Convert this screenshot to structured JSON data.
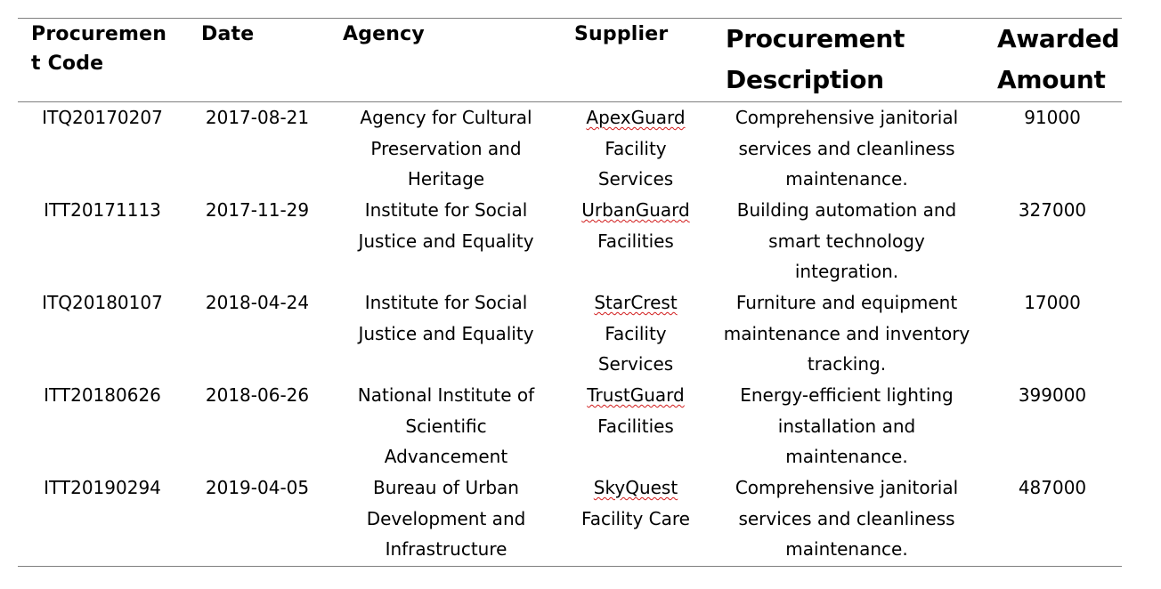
{
  "table": {
    "headers": {
      "code": [
        "Procuremen",
        "t Code"
      ],
      "date": "Date",
      "agency": "Agency",
      "supplier": "Supplier",
      "description": [
        "Procurement",
        "Description"
      ],
      "amount": [
        "Awarded",
        "Amount"
      ]
    },
    "rows": [
      {
        "code": "ITQ20170207",
        "date": "2017-08-21",
        "agency": [
          "Agency for Cultural",
          "Preservation and",
          "Heritage"
        ],
        "supplier_first": "ApexGuard",
        "supplier_rest": [
          "Facility",
          "Services"
        ],
        "description": [
          "Comprehensive janitorial",
          "services and cleanliness",
          "maintenance."
        ],
        "amount": "91000"
      },
      {
        "code": "ITT20171113",
        "date": "2017-11-29",
        "agency": [
          "Institute for Social",
          "Justice and Equality"
        ],
        "supplier_first": "UrbanGuard",
        "supplier_rest": [
          "Facilities"
        ],
        "description": [
          "Building automation and",
          "smart technology",
          "integration."
        ],
        "amount": "327000"
      },
      {
        "code": "ITQ20180107",
        "date": "2018-04-24",
        "agency": [
          "Institute for Social",
          "Justice and Equality"
        ],
        "supplier_first": "StarCrest",
        "supplier_rest": [
          "Facility",
          "Services"
        ],
        "description": [
          "Furniture and equipment",
          "maintenance and inventory",
          "tracking."
        ],
        "amount": "17000"
      },
      {
        "code": "ITT20180626",
        "date": "2018-06-26",
        "agency": [
          "National Institute of",
          "Scientific",
          "Advancement"
        ],
        "supplier_first": "TrustGuard",
        "supplier_rest": [
          "Facilities"
        ],
        "description": [
          "Energy-efficient lighting",
          "installation and",
          "maintenance."
        ],
        "amount": "399000"
      },
      {
        "code": "ITT20190294",
        "date": "2019-04-05",
        "agency": [
          "Bureau of Urban",
          "Development and",
          "Infrastructure"
        ],
        "supplier_first": "SkyQuest",
        "supplier_rest": [
          "Facility Care"
        ],
        "description": [
          "Comprehensive janitorial",
          "services and cleanliness",
          "maintenance."
        ],
        "amount": "487000"
      }
    ]
  },
  "colors": {
    "rule": "#7f7f7f",
    "spellcheck": "#d11c1c"
  }
}
